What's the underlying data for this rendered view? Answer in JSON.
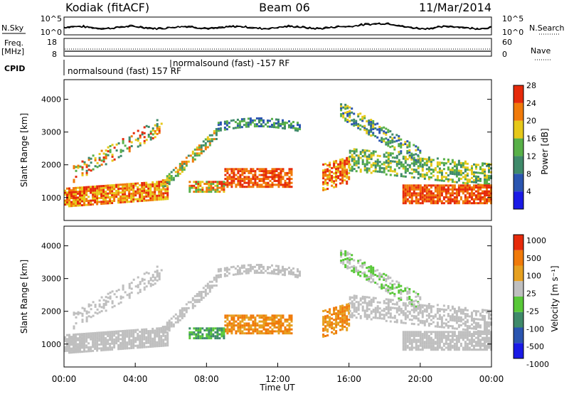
{
  "header": {
    "station": "Kodiak (fitACF)",
    "beam": "Beam 06",
    "date": "11/Mar/2014"
  },
  "strips": {
    "nsky_label": "N.Sky",
    "nsky_ticks": [
      "10^5",
      "10^0"
    ],
    "nsearch_label": "N.Search",
    "nsearch_ticks": [
      "10^5",
      "10^0"
    ],
    "freq_label": "Freq.",
    "freq_unit": "[MHz]",
    "freq_ticks": [
      "18",
      "8"
    ],
    "nave_label": "Nave",
    "nave_ticks": [
      "60",
      "0"
    ],
    "cpid_label": "CPID",
    "cpid_mode_1": "normalsound (fast) 157 RF",
    "cpid_mode_2": "normalsound (fast) -157 RF"
  },
  "chart_data": [
    {
      "type": "heatmap",
      "panel": "power",
      "ylabel": "Slant Range [km]",
      "xlabel": "",
      "y_ticks": [
        "1000",
        "2000",
        "3000",
        "4000"
      ],
      "ylim": [
        300,
        4600
      ],
      "xlim": [
        0,
        24
      ],
      "colorbar_label": "Power [dB]",
      "colorbar_ticks": [
        "4",
        "8",
        "12",
        "16",
        "20",
        "24",
        "28"
      ],
      "colorbar_colors": [
        "#1a1ae6",
        "#2a55b0",
        "#3f8a6a",
        "#58b048",
        "#e6c81a",
        "#f07a0a",
        "#e62a0a"
      ],
      "colorbar_range": [
        0,
        30
      ]
    },
    {
      "type": "heatmap",
      "panel": "velocity",
      "ylabel": "Slant Range [km]",
      "xlabel": "Time UT",
      "y_ticks": [
        "1000",
        "2000",
        "3000",
        "4000"
      ],
      "x_ticks": [
        "00:00",
        "04:00",
        "08:00",
        "12:00",
        "16:00",
        "20:00",
        "00:00"
      ],
      "ylim": [
        300,
        4600
      ],
      "xlim": [
        0,
        24
      ],
      "colorbar_label": "Velocity [m s⁻¹]",
      "colorbar_ticks": [
        "1000",
        "500",
        "100",
        "25",
        "-25",
        "-100",
        "-500",
        "-1000"
      ],
      "colorbar_colors": [
        "#1a1ae6",
        "#2a55b0",
        "#3f8a6a",
        "#58c838",
        "#bfbfbf",
        "#e6a020",
        "#f07a0a",
        "#e62a0a"
      ]
    }
  ]
}
